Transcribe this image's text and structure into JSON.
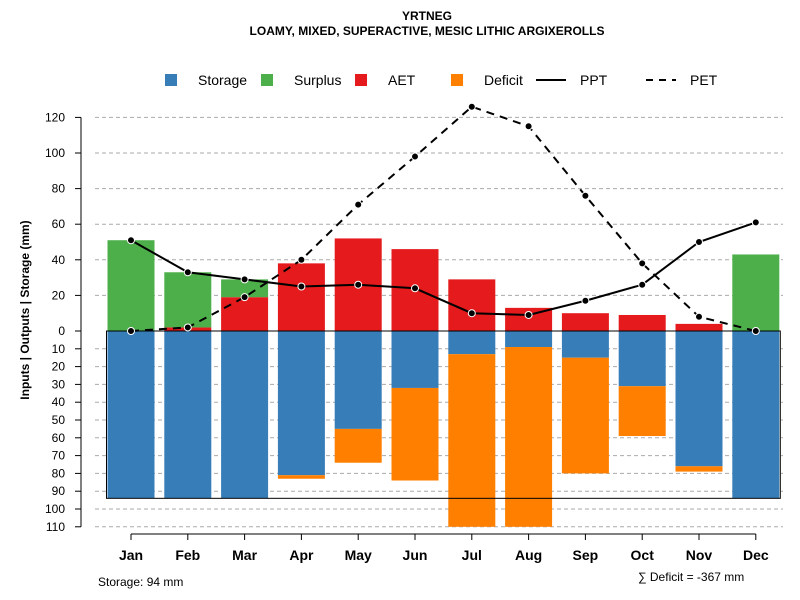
{
  "header": {
    "title": "YRTNEG",
    "subtitle": "LOAMY, MIXED, SUPERACTIVE, MESIC LITHIC ARGIXEROLLS"
  },
  "footer": {
    "storage_note": "Storage: 94 mm",
    "deficit_note": "∑ Deficit = -367 mm"
  },
  "colors": {
    "storage": "#377EB8",
    "surplus": "#4DAF4A",
    "aet": "#E41A1C",
    "deficit": "#FF7F00",
    "ppt": "#000000",
    "pet": "#000000"
  },
  "chart_data": {
    "type": "bar",
    "title": "YRTNEG",
    "subtitle": "LOAMY, MIXED, SUPERACTIVE, MESIC LITHIC ARGIXEROLLS",
    "xlabel": "",
    "ylabel": "Inputs | Outputs | Storage    (mm)",
    "categories": [
      "Jan",
      "Feb",
      "Mar",
      "Apr",
      "May",
      "Jun",
      "Jul",
      "Aug",
      "Sep",
      "Oct",
      "Nov",
      "Dec"
    ],
    "ylim_upper": [
      0,
      130
    ],
    "ylim_lower": [
      0,
      110
    ],
    "upper_ticks": [
      0,
      20,
      40,
      60,
      80,
      100,
      120
    ],
    "upper_tick_labels": [
      "0",
      "20",
      "40",
      "60",
      "80",
      "100",
      "120"
    ],
    "lower_ticks": [
      10,
      20,
      30,
      40,
      50,
      60,
      70,
      80,
      90,
      100,
      110
    ],
    "lower_tick_labels": [
      "10",
      "20",
      "30",
      "40",
      "50",
      "60",
      "70",
      "80",
      "90",
      "100",
      "110"
    ],
    "storage_capacity": 94,
    "legend": [
      {
        "key": "storage",
        "label": "Storage",
        "kind": "box"
      },
      {
        "key": "surplus",
        "label": "Surplus",
        "kind": "box"
      },
      {
        "key": "aet",
        "label": "AET",
        "kind": "box"
      },
      {
        "key": "deficit",
        "label": "Deficit",
        "kind": "box"
      },
      {
        "key": "ppt",
        "label": "PPT",
        "kind": "solid"
      },
      {
        "key": "pet",
        "label": "PET",
        "kind": "dashed"
      }
    ],
    "series": [
      {
        "name": "Surplus",
        "key": "surplus",
        "position": "above",
        "values": [
          51,
          31,
          10,
          0,
          0,
          0,
          0,
          0,
          0,
          0,
          0,
          43
        ]
      },
      {
        "name": "AET",
        "key": "aet",
        "position": "above",
        "values": [
          0,
          2,
          19,
          38,
          52,
          46,
          29,
          13,
          10,
          9,
          4,
          0
        ]
      },
      {
        "name": "Storage",
        "key": "storage",
        "position": "below",
        "values": [
          94,
          94,
          94,
          81,
          55,
          32,
          13,
          9,
          15,
          31,
          76,
          94
        ]
      },
      {
        "name": "Deficit",
        "key": "deficit",
        "position": "below",
        "values": [
          0,
          0,
          0,
          2,
          19,
          52,
          97,
          101,
          65,
          28,
          3,
          0
        ]
      },
      {
        "name": "PPT",
        "key": "ppt",
        "type": "line",
        "values": [
          51,
          33,
          29,
          25,
          26,
          24,
          10,
          9,
          17,
          26,
          50,
          61
        ]
      },
      {
        "name": "PET",
        "key": "pet",
        "type": "line",
        "dashed": true,
        "values": [
          0,
          2,
          19,
          40,
          71,
          98,
          126,
          115,
          76,
          38,
          8,
          0
        ]
      }
    ]
  }
}
